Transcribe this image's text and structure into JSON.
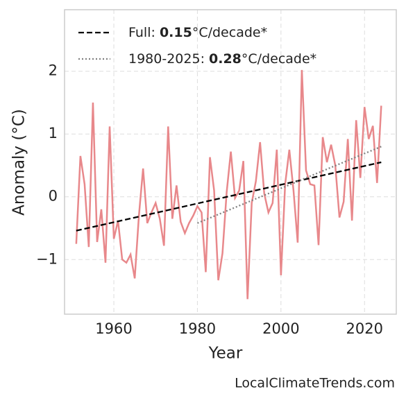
{
  "chart_data": {
    "type": "line",
    "xlabel": "Year",
    "ylabel": "Anomaly (°C)",
    "x": [
      1951,
      1952,
      1953,
      1954,
      1955,
      1956,
      1957,
      1958,
      1959,
      1960,
      1961,
      1962,
      1963,
      1964,
      1965,
      1966,
      1967,
      1968,
      1969,
      1970,
      1971,
      1972,
      1973,
      1974,
      1975,
      1976,
      1977,
      1978,
      1979,
      1980,
      1981,
      1982,
      1983,
      1984,
      1985,
      1986,
      1987,
      1988,
      1989,
      1990,
      1991,
      1992,
      1993,
      1994,
      1995,
      1996,
      1997,
      1998,
      1999,
      2000,
      2001,
      2002,
      2003,
      2004,
      2005,
      2006,
      2007,
      2008,
      2009,
      2010,
      2011,
      2012,
      2013,
      2014,
      2015,
      2016,
      2017,
      2018,
      2019,
      2020,
      2021,
      2022,
      2023,
      2024
    ],
    "series": [
      {
        "color": "#e8888b",
        "values": [
          -0.75,
          0.65,
          0.2,
          -0.8,
          1.5,
          -0.72,
          -0.2,
          -1.05,
          1.12,
          -0.67,
          -0.38,
          -1.0,
          -1.05,
          -0.92,
          -1.3,
          -0.3,
          0.45,
          -0.42,
          -0.25,
          -0.1,
          -0.35,
          -0.78,
          1.12,
          -0.35,
          0.18,
          -0.4,
          -0.58,
          -0.42,
          -0.3,
          -0.15,
          -0.25,
          -1.2,
          0.63,
          0.1,
          -1.33,
          -0.9,
          0.07,
          0.72,
          -0.02,
          0.1,
          0.57,
          -1.63,
          -0.1,
          0.25,
          0.87,
          0.05,
          -0.25,
          -0.1,
          0.75,
          -1.25,
          0.2,
          0.75,
          0.1,
          -0.73,
          2.02,
          0.42,
          0.2,
          0.18,
          -0.77,
          0.95,
          0.55,
          0.83,
          0.5,
          -0.33,
          -0.08,
          0.92,
          -0.38,
          1.22,
          0.3,
          1.43,
          0.92,
          1.13,
          0.22,
          1.45
        ]
      },
      {
        "name": "Full: 0.15°C/decade*",
        "color": "#000000",
        "dash": "dashed",
        "x": [
          1951,
          2024
        ],
        "values": [
          -0.54,
          0.55
        ]
      },
      {
        "name": "1980-2025: 0.28°C/decade*",
        "color": "#808080",
        "dash": "dotted",
        "x": [
          1980,
          2024
        ],
        "values": [
          -0.42,
          0.8
        ]
      }
    ],
    "xlim": [
      1948.2,
      2027.6
    ],
    "xticks": [
      1960,
      1980,
      2000,
      2020
    ],
    "ylim": [
      -1.87,
      2.98
    ],
    "yticks": [
      {
        "value": -1,
        "label": "−1"
      },
      0,
      1,
      2
    ],
    "grid": true,
    "legend": "upper left",
    "watermark": "LocalClimateTrends.com"
  }
}
